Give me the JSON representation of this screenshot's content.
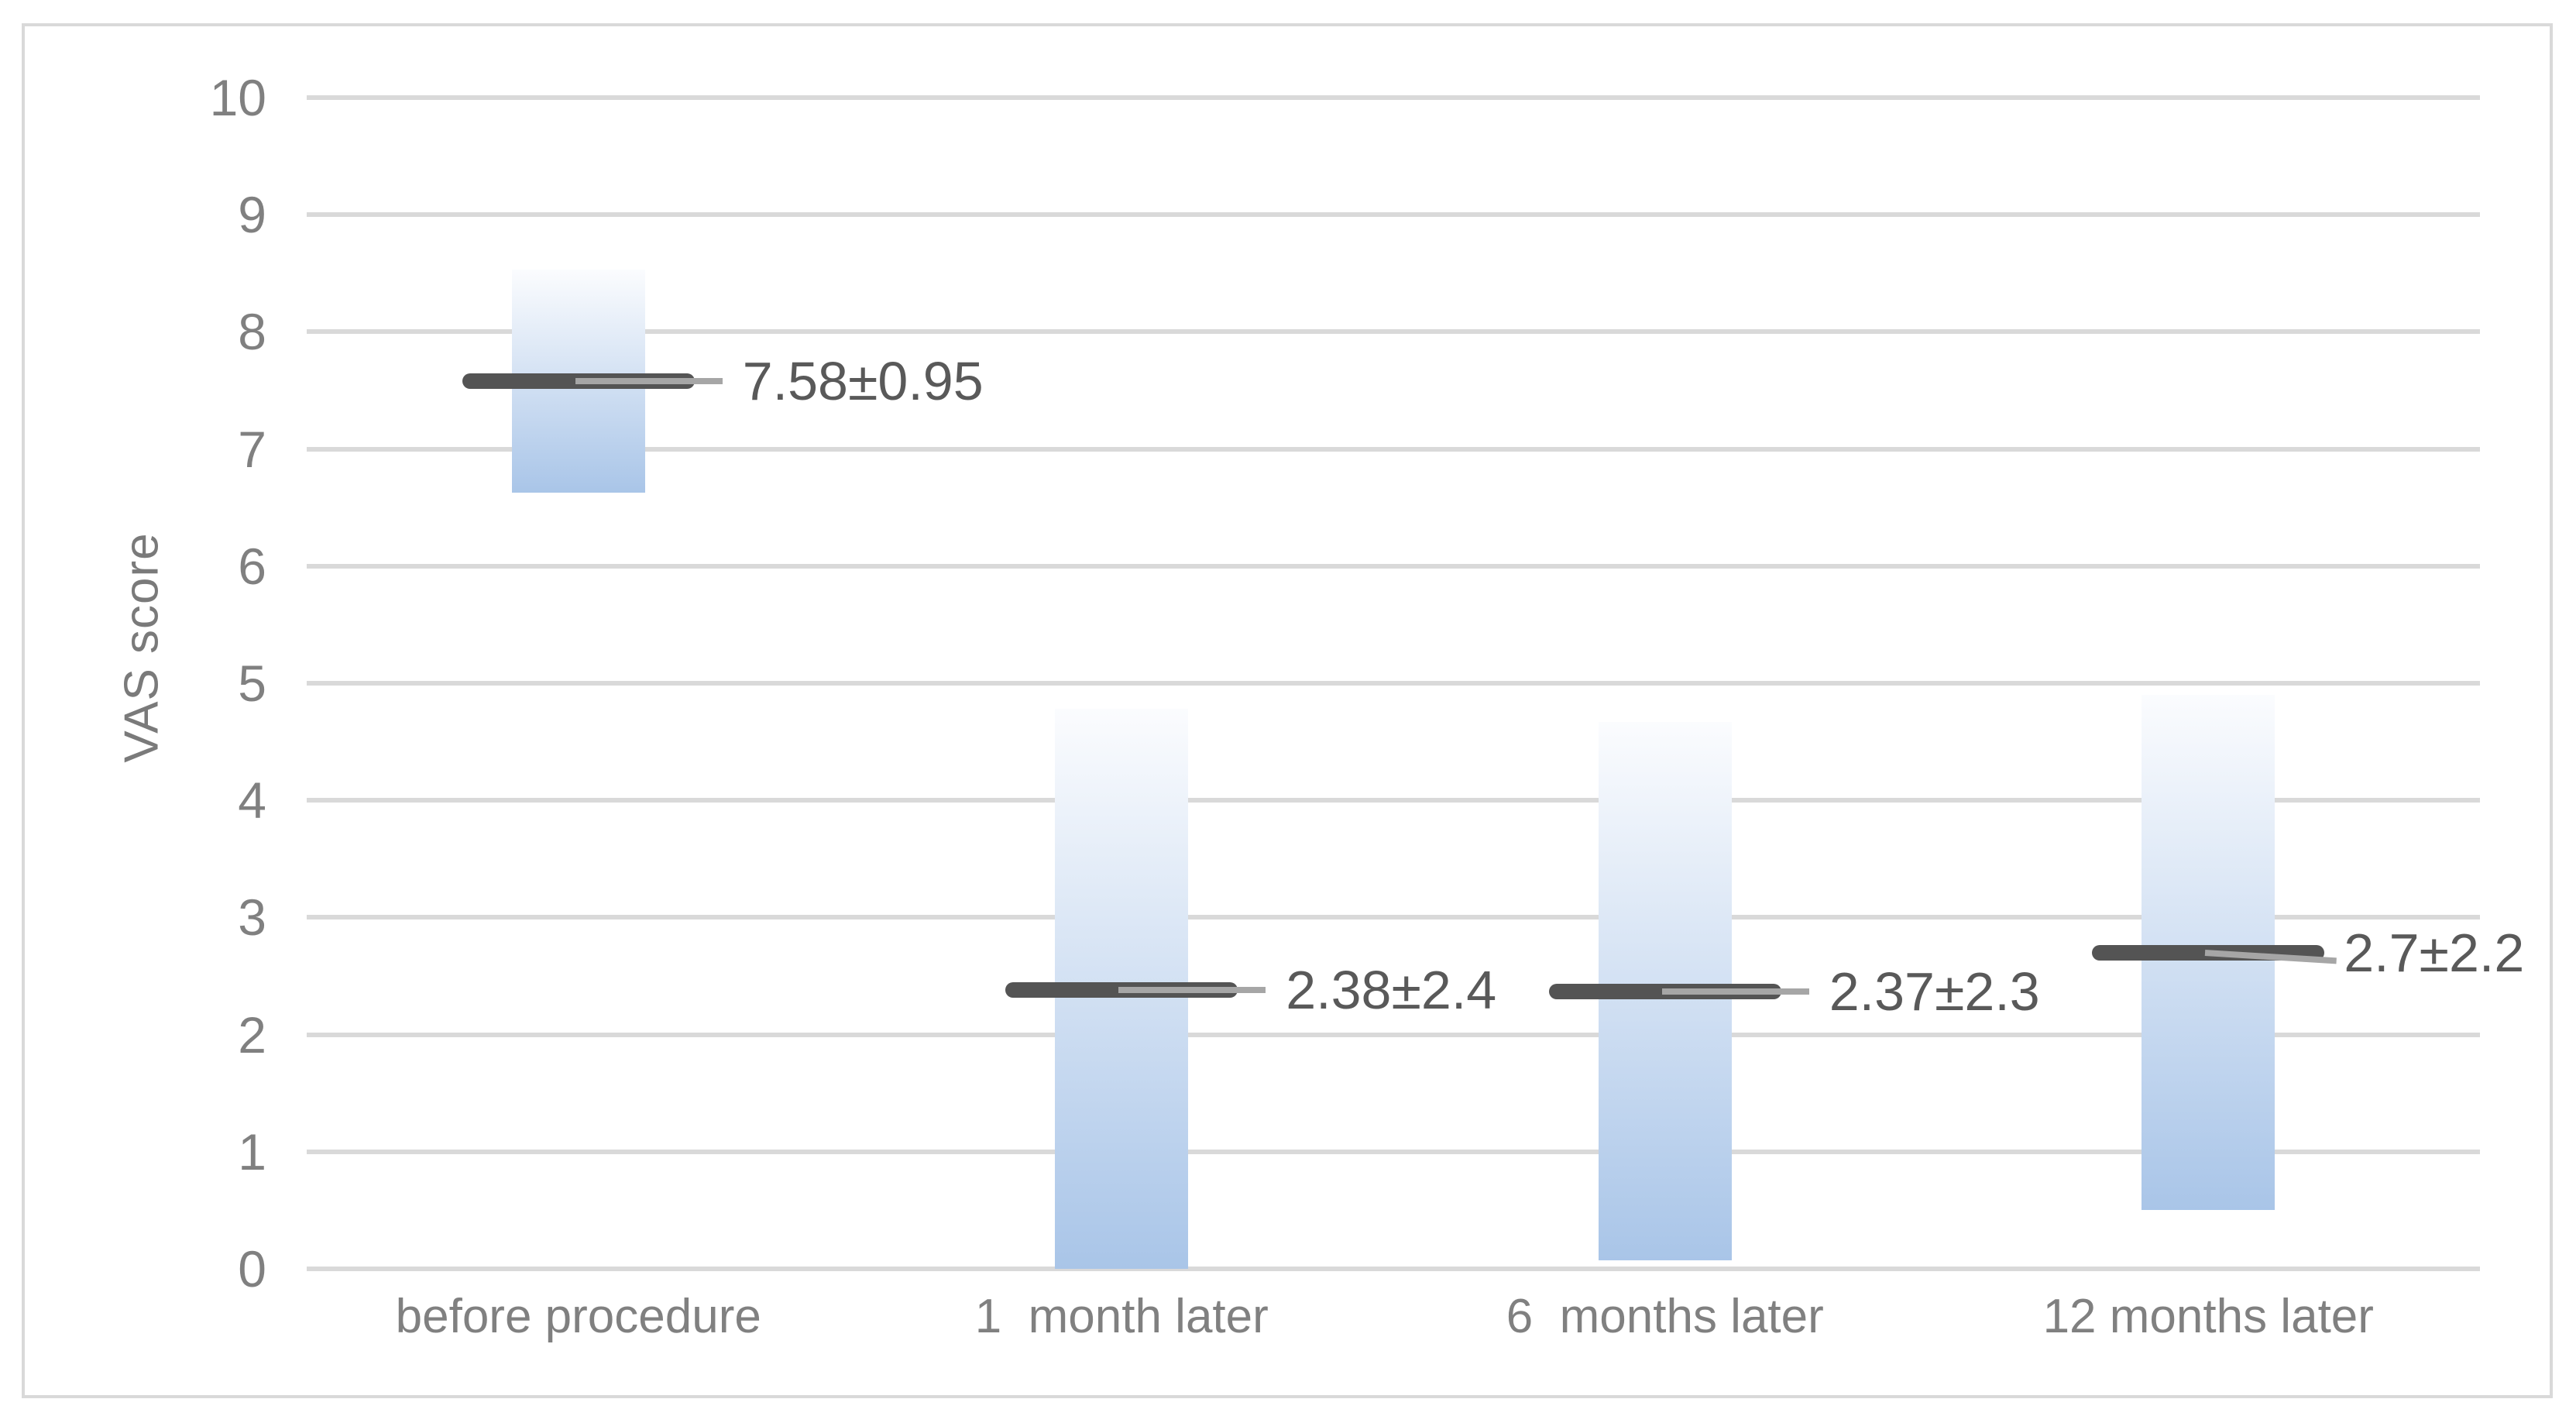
{
  "chart_data": {
    "type": "bar",
    "title": "",
    "xlabel": "",
    "ylabel": "VAS score",
    "ylim": [
      0,
      10
    ],
    "yticks": [
      0,
      1,
      2,
      3,
      4,
      5,
      6,
      7,
      8,
      9,
      10
    ],
    "grid": "horizontal",
    "legend": "none",
    "categories": [
      "before procedure",
      "1  month later",
      "6  months later",
      "12 months later"
    ],
    "series": [
      {
        "means": [
          7.58,
          2.38,
          2.37,
          2.7
        ],
        "sds": [
          0.95,
          2.4,
          2.3,
          2.2
        ],
        "point_labels": [
          "7.58±0.95",
          "2.38±2.4",
          "2.37±2.3",
          "2.7±2.2"
        ],
        "bar_ranges": [
          [
            6.63,
            8.53
          ],
          [
            0,
            4.78
          ],
          [
            0.07,
            4.67
          ],
          [
            0.5,
            4.9
          ]
        ]
      }
    ],
    "colors": {
      "bar_gradient_top": "#fbfcfe",
      "bar_gradient_bottom": "#a9c5e8",
      "mean_line": "#545454",
      "secondary_line": "#a6a6a6",
      "value_label_text": "#595959",
      "axis_text": "#808080",
      "y_title_text": "#7a7a7a",
      "gridline": "#d9d9d9",
      "border": "#d9d9d9",
      "background": "#ffffff"
    }
  }
}
